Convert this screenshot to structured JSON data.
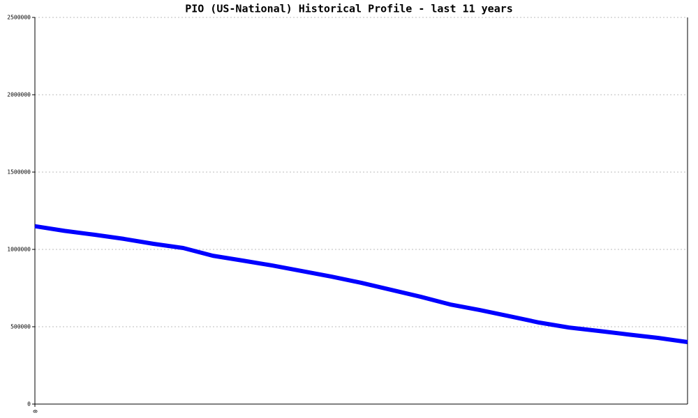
{
  "chart_data": {
    "type": "line",
    "title": "PIO (US-National) Historical Profile - last 11 years",
    "x": [
      0,
      1,
      2,
      3,
      4,
      5,
      6,
      7,
      8,
      9,
      10,
      11,
      12,
      13,
      14,
      15,
      16,
      17,
      18,
      19,
      20,
      21,
      22
    ],
    "series": [
      {
        "name": "PIO",
        "color": "#0000ff",
        "values": [
          1150000,
          1120000,
          1095000,
          1068000,
          1036000,
          1009000,
          959000,
          928000,
          896000,
          860000,
          824000,
          784000,
          739000,
          694000,
          644000,
          608000,
          568000,
          527000,
          495000,
          473000,
          450000,
          428000,
          401000
        ]
      }
    ],
    "xlim": [
      0,
      22
    ],
    "xticks": [
      0
    ],
    "ylim": [
      0,
      2500000
    ],
    "yticks": [
      0,
      500000,
      1000000,
      1500000,
      2000000,
      2500000
    ],
    "grid": true
  }
}
